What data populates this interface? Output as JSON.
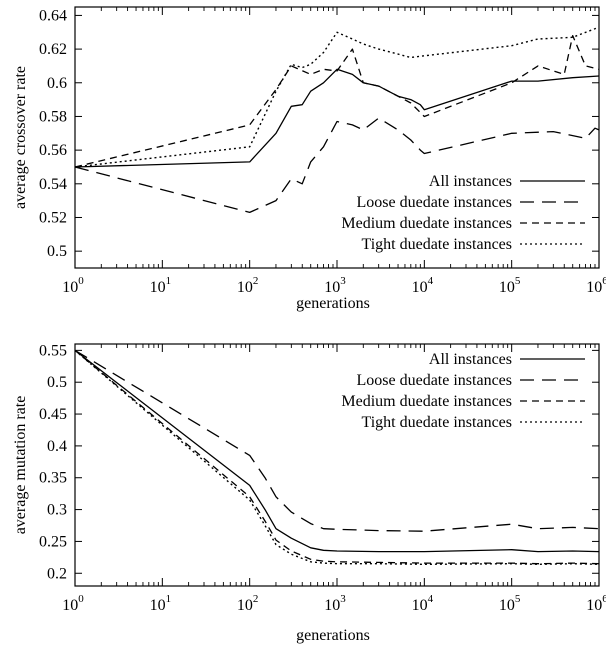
{
  "chart_data": [
    {
      "type": "line",
      "xlabel": "generations",
      "ylabel": "average crossover rate",
      "xscale": "log",
      "xlim": [
        1,
        1000000
      ],
      "ylim": [
        0.49,
        0.645
      ],
      "x_ticks": [
        1,
        10,
        100,
        1000,
        10000,
        100000,
        1000000
      ],
      "x_tick_labels": [
        {
          "base": "10",
          "exp": "0"
        },
        {
          "base": "10",
          "exp": "1"
        },
        {
          "base": "10",
          "exp": "2"
        },
        {
          "base": "10",
          "exp": "3"
        },
        {
          "base": "10",
          "exp": "4"
        },
        {
          "base": "10",
          "exp": "5"
        },
        {
          "base": "10",
          "exp": "6"
        }
      ],
      "y_ticks": [
        0.5,
        0.52,
        0.54,
        0.56,
        0.58,
        0.6,
        0.62,
        0.64
      ],
      "y_tick_labels": [
        "0.5",
        "0.52",
        "0.54",
        "0.56",
        "0.58",
        "0.6",
        "0.62",
        "0.64"
      ],
      "legend_position": "bottom-right",
      "grid": false,
      "series": [
        {
          "name": "All instances",
          "style": "solid",
          "x": [
            1,
            100,
            200,
            300,
            400,
            500,
            700,
            1000,
            1500,
            2000,
            3000,
            5000,
            7000,
            9000,
            10000,
            100000,
            200000,
            500000,
            1000000
          ],
          "y": [
            0.55,
            0.553,
            0.57,
            0.586,
            0.587,
            0.595,
            0.6,
            0.608,
            0.605,
            0.6,
            0.598,
            0.592,
            0.59,
            0.587,
            0.584,
            0.601,
            0.601,
            0.603,
            0.604
          ]
        },
        {
          "name": "Loose duedate instances",
          "style": "long-dash",
          "x": [
            1,
            100,
            200,
            300,
            400,
            500,
            700,
            1000,
            1500,
            2000,
            3000,
            5000,
            7000,
            9000,
            10000,
            100000,
            300000,
            700000,
            900000,
            1000000
          ],
          "y": [
            0.55,
            0.523,
            0.53,
            0.543,
            0.54,
            0.553,
            0.562,
            0.577,
            0.575,
            0.572,
            0.579,
            0.572,
            0.566,
            0.56,
            0.558,
            0.57,
            0.571,
            0.567,
            0.573,
            0.572
          ]
        },
        {
          "name": "Medium duedate instances",
          "style": "dash",
          "x": [
            1,
            100,
            200,
            300,
            500,
            700,
            1000,
            1500,
            2000,
            3000,
            5000,
            7000,
            10000,
            100000,
            200000,
            400000,
            500000,
            700000,
            1000000
          ],
          "y": [
            0.55,
            0.575,
            0.596,
            0.61,
            0.605,
            0.608,
            0.607,
            0.62,
            0.6,
            0.598,
            0.592,
            0.588,
            0.58,
            0.6,
            0.61,
            0.605,
            0.628,
            0.61,
            0.608
          ]
        },
        {
          "name": "Tight duedate instances",
          "style": "dot",
          "x": [
            1,
            100,
            200,
            300,
            400,
            500,
            700,
            1000,
            1500,
            2000,
            3000,
            5000,
            7000,
            10000,
            100000,
            200000,
            500000,
            1000000
          ],
          "y": [
            0.55,
            0.562,
            0.595,
            0.611,
            0.609,
            0.611,
            0.618,
            0.63,
            0.626,
            0.623,
            0.62,
            0.617,
            0.615,
            0.616,
            0.622,
            0.626,
            0.627,
            0.633
          ]
        }
      ]
    },
    {
      "type": "line",
      "xlabel": "generations",
      "ylabel": "average mutation rate",
      "xscale": "log",
      "xlim": [
        1,
        1000000
      ],
      "ylim": [
        0.18,
        0.56
      ],
      "x_ticks": [
        1,
        10,
        100,
        1000,
        10000,
        100000,
        1000000
      ],
      "x_tick_labels": [
        {
          "base": "10",
          "exp": "0"
        },
        {
          "base": "10",
          "exp": "1"
        },
        {
          "base": "10",
          "exp": "2"
        },
        {
          "base": "10",
          "exp": "3"
        },
        {
          "base": "10",
          "exp": "4"
        },
        {
          "base": "10",
          "exp": "5"
        },
        {
          "base": "10",
          "exp": "6"
        }
      ],
      "y_ticks": [
        0.2,
        0.25,
        0.3,
        0.35,
        0.4,
        0.45,
        0.5,
        0.55
      ],
      "y_tick_labels": [
        "0.2",
        "0.25",
        "0.3",
        "0.35",
        "0.4",
        "0.45",
        "0.5",
        "0.55"
      ],
      "legend_position": "top-right",
      "grid": false,
      "series": [
        {
          "name": "All instances",
          "style": "solid",
          "x": [
            1,
            100,
            150,
            200,
            300,
            500,
            700,
            1000,
            3000,
            10000,
            100000,
            200000,
            500000,
            1000000
          ],
          "y": [
            0.55,
            0.338,
            0.3,
            0.27,
            0.255,
            0.24,
            0.236,
            0.235,
            0.234,
            0.234,
            0.237,
            0.234,
            0.235,
            0.234
          ]
        },
        {
          "name": "Loose duedate instances",
          "style": "long-dash",
          "x": [
            1,
            100,
            150,
            200,
            300,
            500,
            700,
            1000,
            3000,
            10000,
            100000,
            200000,
            500000,
            1000000
          ],
          "y": [
            0.55,
            0.385,
            0.35,
            0.32,
            0.296,
            0.278,
            0.27,
            0.269,
            0.267,
            0.266,
            0.277,
            0.27,
            0.272,
            0.27
          ]
        },
        {
          "name": "Medium duedate instances",
          "style": "dash",
          "x": [
            1,
            100,
            150,
            200,
            300,
            500,
            700,
            1000,
            3000,
            10000,
            100000,
            200000,
            500000,
            1000000
          ],
          "y": [
            0.55,
            0.32,
            0.282,
            0.252,
            0.235,
            0.222,
            0.219,
            0.218,
            0.217,
            0.216,
            0.216,
            0.215,
            0.216,
            0.215
          ]
        },
        {
          "name": "Tight duedate instances",
          "style": "dot",
          "x": [
            1,
            100,
            150,
            200,
            300,
            500,
            700,
            1000,
            3000,
            10000,
            100000,
            200000,
            500000,
            1000000
          ],
          "y": [
            0.55,
            0.315,
            0.275,
            0.245,
            0.23,
            0.218,
            0.216,
            0.215,
            0.215,
            0.214,
            0.215,
            0.214,
            0.215,
            0.214
          ]
        }
      ]
    }
  ]
}
